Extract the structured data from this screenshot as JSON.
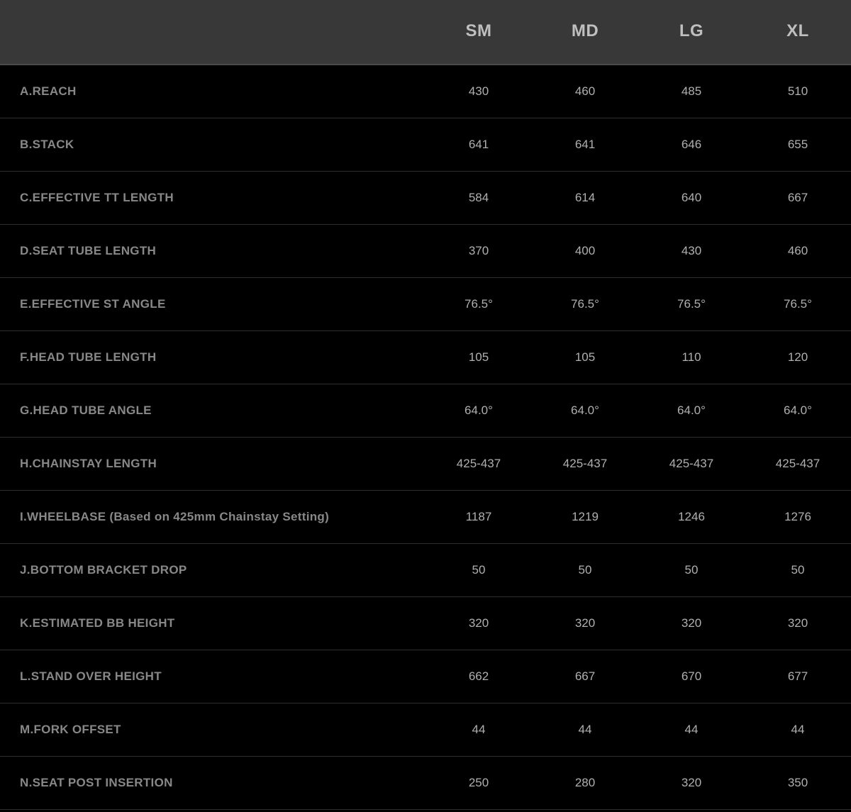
{
  "table": {
    "background_color": "#000000",
    "header_background": "#383838",
    "header_text_color": "#bfbfbf",
    "row_label_color": "#888888",
    "value_text_color": "#b0b0b0",
    "border_color": "#2e2e2e",
    "header_border_color": "#4a4a4a",
    "header_fontsize": 24,
    "label_fontsize": 17,
    "value_fontsize": 17,
    "label_col_width": 600,
    "size_col_width": 150,
    "columns": [
      "",
      "SM",
      "MD",
      "LG",
      "XL"
    ],
    "rows": [
      {
        "label": "A.REACH",
        "values": [
          "430",
          "460",
          "485",
          "510"
        ]
      },
      {
        "label": "B.STACK",
        "values": [
          "641",
          "641",
          "646",
          "655"
        ]
      },
      {
        "label": "C.EFFECTIVE TT LENGTH",
        "values": [
          "584",
          "614",
          "640",
          "667"
        ]
      },
      {
        "label": "D.SEAT TUBE LENGTH",
        "values": [
          "370",
          "400",
          "430",
          "460"
        ]
      },
      {
        "label": "E.EFFECTIVE ST ANGLE",
        "values": [
          "76.5°",
          "76.5°",
          "76.5°",
          "76.5°"
        ]
      },
      {
        "label": "F.HEAD TUBE LENGTH",
        "values": [
          "105",
          "105",
          "110",
          "120"
        ]
      },
      {
        "label": "G.HEAD TUBE ANGLE",
        "values": [
          "64.0°",
          "64.0°",
          "64.0°",
          "64.0°"
        ]
      },
      {
        "label": "H.CHAINSTAY LENGTH",
        "values": [
          "425-437",
          "425-437",
          "425-437",
          "425-437"
        ]
      },
      {
        "label": "I.WHEELBASE (Based on 425mm Chainstay Setting)",
        "values": [
          "1187",
          "1219",
          "1246",
          "1276"
        ]
      },
      {
        "label": "J.BOTTOM BRACKET DROP",
        "values": [
          "50",
          "50",
          "50",
          "50"
        ]
      },
      {
        "label": "K.ESTIMATED BB HEIGHT",
        "values": [
          "320",
          "320",
          "320",
          "320"
        ]
      },
      {
        "label": "L.STAND OVER HEIGHT",
        "values": [
          "662",
          "667",
          "670",
          "677"
        ]
      },
      {
        "label": "M.FORK OFFSET",
        "values": [
          "44",
          "44",
          "44",
          "44"
        ]
      },
      {
        "label": "N.SEAT POST INSERTION",
        "values": [
          "250",
          "280",
          "320",
          "350"
        ]
      }
    ]
  }
}
